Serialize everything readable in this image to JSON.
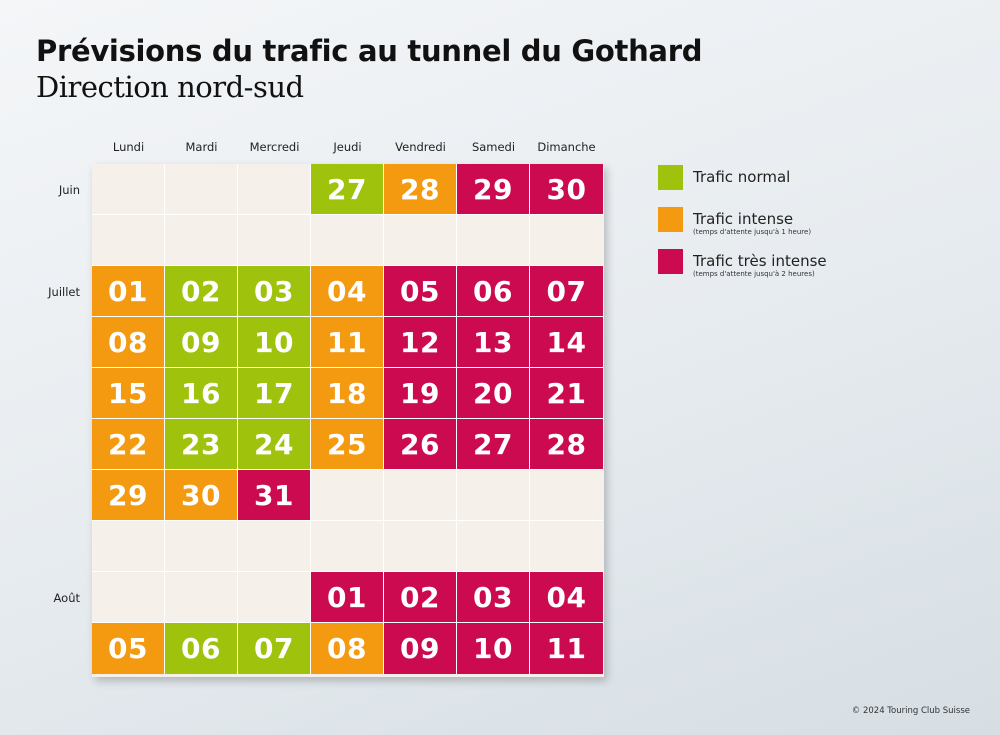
{
  "title": "Prévisions du trafic au tunnel du Gothard",
  "subtitle": "Direction nord-sud",
  "copyright": "© 2024 Touring Club Suisse",
  "colors": {
    "normal": "#9fc20d",
    "intense": "#f39a11",
    "very_intense": "#cc0a4f",
    "empty": "#f5f1ea"
  },
  "legend": [
    {
      "key": "normal",
      "label": "Trafic normal",
      "note": ""
    },
    {
      "key": "intense",
      "label": "Trafic intense",
      "note": "(temps d'attente jusqu'à 1 heure)"
    },
    {
      "key": "very",
      "label": "Trafic très intense",
      "note": "(temps d'attente jusqu'à 2 heures)"
    }
  ],
  "chart_data": {
    "type": "table",
    "columns": [
      "Lundi",
      "Mardi",
      "Mercredi",
      "Jeudi",
      "Vendredi",
      "Samedi",
      "Dimanche"
    ],
    "months": [
      "Juin",
      "Juillet",
      "Août"
    ],
    "rows": [
      {
        "month": "Juin",
        "cells": [
          null,
          null,
          null,
          {
            "day": "27",
            "level": "normal"
          },
          {
            "day": "28",
            "level": "intense"
          },
          {
            "day": "29",
            "level": "very"
          },
          {
            "day": "30",
            "level": "very"
          }
        ]
      },
      {
        "month": "",
        "cells": [
          null,
          null,
          null,
          null,
          null,
          null,
          null
        ]
      },
      {
        "month": "Juillet",
        "cells": [
          {
            "day": "01",
            "level": "intense"
          },
          {
            "day": "02",
            "level": "normal"
          },
          {
            "day": "03",
            "level": "normal"
          },
          {
            "day": "04",
            "level": "intense"
          },
          {
            "day": "05",
            "level": "very"
          },
          {
            "day": "06",
            "level": "very"
          },
          {
            "day": "07",
            "level": "very"
          }
        ]
      },
      {
        "month": "",
        "cells": [
          {
            "day": "08",
            "level": "intense"
          },
          {
            "day": "09",
            "level": "normal"
          },
          {
            "day": "10",
            "level": "normal"
          },
          {
            "day": "11",
            "level": "intense"
          },
          {
            "day": "12",
            "level": "very"
          },
          {
            "day": "13",
            "level": "very"
          },
          {
            "day": "14",
            "level": "very"
          }
        ]
      },
      {
        "month": "",
        "cells": [
          {
            "day": "15",
            "level": "intense"
          },
          {
            "day": "16",
            "level": "normal"
          },
          {
            "day": "17",
            "level": "normal"
          },
          {
            "day": "18",
            "level": "intense"
          },
          {
            "day": "19",
            "level": "very"
          },
          {
            "day": "20",
            "level": "very"
          },
          {
            "day": "21",
            "level": "very"
          }
        ]
      },
      {
        "month": "",
        "cells": [
          {
            "day": "22",
            "level": "intense"
          },
          {
            "day": "23",
            "level": "normal"
          },
          {
            "day": "24",
            "level": "normal"
          },
          {
            "day": "25",
            "level": "intense"
          },
          {
            "day": "26",
            "level": "very"
          },
          {
            "day": "27",
            "level": "very"
          },
          {
            "day": "28",
            "level": "very"
          }
        ]
      },
      {
        "month": "",
        "cells": [
          {
            "day": "29",
            "level": "intense"
          },
          {
            "day": "30",
            "level": "intense"
          },
          {
            "day": "31",
            "level": "very"
          },
          null,
          null,
          null,
          null
        ]
      },
      {
        "month": "",
        "cells": [
          null,
          null,
          null,
          null,
          null,
          null,
          null
        ]
      },
      {
        "month": "Août",
        "cells": [
          null,
          null,
          null,
          {
            "day": "01",
            "level": "very"
          },
          {
            "day": "02",
            "level": "very"
          },
          {
            "day": "03",
            "level": "very"
          },
          {
            "day": "04",
            "level": "very"
          }
        ]
      },
      {
        "month": "",
        "cells": [
          {
            "day": "05",
            "level": "intense"
          },
          {
            "day": "06",
            "level": "normal"
          },
          {
            "day": "07",
            "level": "normal"
          },
          {
            "day": "08",
            "level": "intense"
          },
          {
            "day": "09",
            "level": "very"
          },
          {
            "day": "10",
            "level": "very"
          },
          {
            "day": "11",
            "level": "very"
          }
        ]
      }
    ]
  }
}
